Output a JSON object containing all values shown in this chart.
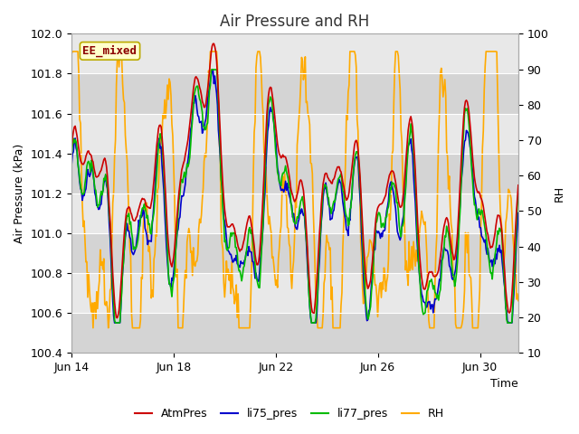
{
  "title": "Air Pressure and RH",
  "xlabel": "Time",
  "ylabel_left": "Air Pressure (kPa)",
  "ylabel_right": "RH",
  "ylim_left": [
    100.4,
    102.0
  ],
  "ylim_right": [
    10,
    100
  ],
  "yticks_left": [
    100.4,
    100.6,
    100.8,
    101.0,
    101.2,
    101.4,
    101.6,
    101.8,
    102.0
  ],
  "yticks_right": [
    10,
    20,
    30,
    40,
    50,
    60,
    70,
    80,
    90,
    100
  ],
  "xtick_labels": [
    "Jun 14",
    "Jun 18",
    "Jun 22",
    "Jun 26",
    "Jun 30"
  ],
  "xtick_positions": [
    0,
    4,
    8,
    12,
    16
  ],
  "xlim": [
    0,
    17.5
  ],
  "color_atmpres": "#cc0000",
  "color_li75": "#0000cc",
  "color_li77": "#00bb00",
  "color_rh": "#ffaa00",
  "annotation_text": "EE_mixed",
  "annotation_bg": "#ffffcc",
  "annotation_border": "#bbaa00",
  "fig_bg": "#ffffff",
  "plot_bg": "#e8e8e8",
  "grid_color": "#ffffff",
  "title_fontsize": 12,
  "label_fontsize": 9,
  "tick_fontsize": 9,
  "legend_fontsize": 9,
  "linewidth": 1.2
}
